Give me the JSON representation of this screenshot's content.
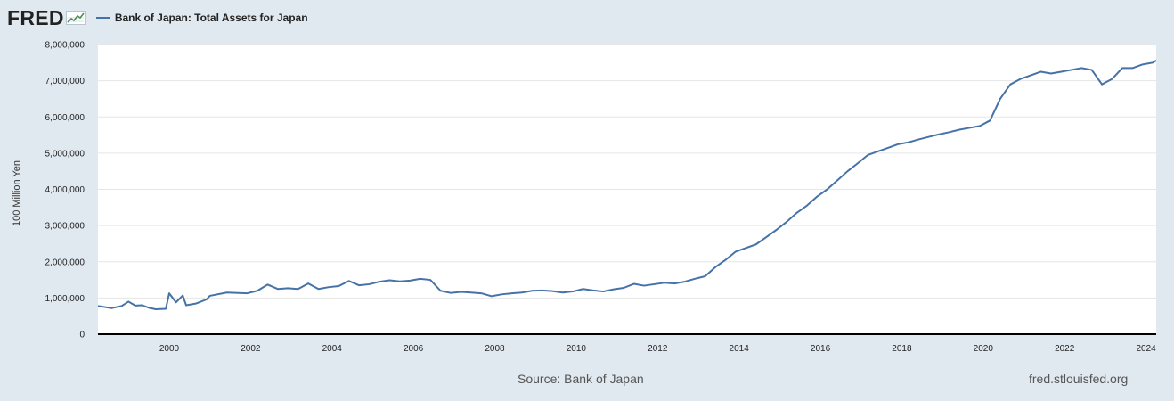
{
  "header": {
    "logo_text": "FRED",
    "legend_label": "Bank of Japan: Total Assets for Japan"
  },
  "footer": {
    "source": "Source: Bank of Japan",
    "url": "fred.stlouisfed.org"
  },
  "colors": {
    "background": "#e1e9f0",
    "plot_background": "#ffffff",
    "series": "#4572a7",
    "axis": "#000000",
    "grid": "#e6e6e6"
  },
  "chart_data": {
    "type": "line",
    "title": "",
    "ylabel": "100 Million Yen",
    "xlabel": "",
    "ylim": [
      0,
      8000000
    ],
    "xlim": [
      "1998-04",
      "2024-04"
    ],
    "grid": "horizontal",
    "legend_placement": "top-left",
    "y_ticks": [
      0,
      1000000,
      2000000,
      3000000,
      4000000,
      5000000,
      6000000,
      7000000,
      8000000
    ],
    "y_tick_labels": [
      "0",
      "1,000,000",
      "2,000,000",
      "3,000,000",
      "4,000,000",
      "5,000,000",
      "6,000,000",
      "7,000,000",
      "8,000,000"
    ],
    "x_tick_labels": [
      "2000",
      "2002",
      "2004",
      "2006",
      "2008",
      "2010",
      "2012",
      "2014",
      "2016",
      "2018",
      "2020",
      "2022",
      "2024"
    ],
    "series": [
      {
        "name": "Bank of Japan: Total Assets for Japan",
        "x": [
          "1998-04",
          "1998-08",
          "1998-11",
          "1999-01",
          "1999-03",
          "1999-05",
          "1999-07",
          "1999-09",
          "1999-12",
          "2000-01",
          "2000-03",
          "2000-05",
          "2000-06",
          "2000-09",
          "2000-12",
          "2001-01",
          "2001-06",
          "2001-12",
          "2002-03",
          "2002-06",
          "2002-09",
          "2002-12",
          "2003-03",
          "2003-06",
          "2003-09",
          "2003-12",
          "2004-03",
          "2004-06",
          "2004-09",
          "2004-12",
          "2005-03",
          "2005-06",
          "2005-09",
          "2005-12",
          "2006-03",
          "2006-06",
          "2006-09",
          "2006-12",
          "2007-03",
          "2007-06",
          "2007-09",
          "2007-12",
          "2008-03",
          "2008-06",
          "2008-09",
          "2008-12",
          "2009-03",
          "2009-06",
          "2009-09",
          "2009-12",
          "2010-03",
          "2010-06",
          "2010-09",
          "2010-12",
          "2011-03",
          "2011-06",
          "2011-09",
          "2011-12",
          "2012-03",
          "2012-06",
          "2012-09",
          "2012-12",
          "2013-03",
          "2013-06",
          "2013-09",
          "2013-12",
          "2014-03",
          "2014-06",
          "2014-09",
          "2014-12",
          "2015-03",
          "2015-06",
          "2015-09",
          "2015-12",
          "2016-03",
          "2016-06",
          "2016-09",
          "2016-12",
          "2017-03",
          "2017-06",
          "2017-09",
          "2017-12",
          "2018-03",
          "2018-06",
          "2018-09",
          "2018-12",
          "2019-03",
          "2019-06",
          "2019-09",
          "2019-12",
          "2020-03",
          "2020-06",
          "2020-09",
          "2020-12",
          "2021-03",
          "2021-06",
          "2021-09",
          "2021-12",
          "2022-03",
          "2022-06",
          "2022-09",
          "2022-12",
          "2023-01",
          "2023-03",
          "2023-06",
          "2023-09",
          "2023-12",
          "2024-03",
          "2024-04"
        ],
        "y": [
          780000,
          720000,
          780000,
          900000,
          790000,
          800000,
          730000,
          690000,
          700000,
          1130000,
          880000,
          1070000,
          800000,
          850000,
          960000,
          1060000,
          1150000,
          1130000,
          1200000,
          1370000,
          1250000,
          1270000,
          1250000,
          1400000,
          1250000,
          1300000,
          1330000,
          1470000,
          1350000,
          1380000,
          1450000,
          1490000,
          1460000,
          1480000,
          1530000,
          1500000,
          1200000,
          1140000,
          1170000,
          1150000,
          1130000,
          1050000,
          1100000,
          1130000,
          1150000,
          1200000,
          1210000,
          1190000,
          1150000,
          1180000,
          1250000,
          1210000,
          1180000,
          1240000,
          1280000,
          1390000,
          1340000,
          1380000,
          1420000,
          1400000,
          1450000,
          1530000,
          1600000,
          1850000,
          2050000,
          2280000,
          2380000,
          2480000,
          2680000,
          2880000,
          3100000,
          3350000,
          3550000,
          3800000,
          4000000,
          4250000,
          4500000,
          4720000,
          4950000,
          5050000,
          5150000,
          5250000,
          5300000,
          5380000,
          5450000,
          5520000,
          5580000,
          5650000,
          5700000,
          5750000,
          5900000,
          6500000,
          6900000,
          7050000,
          7150000,
          7250000,
          7200000,
          7250000,
          7300000,
          7350000,
          7300000,
          6900000,
          6950000,
          7050000,
          7350000,
          7350000,
          7450000,
          7500000,
          7560000
        ]
      }
    ]
  }
}
